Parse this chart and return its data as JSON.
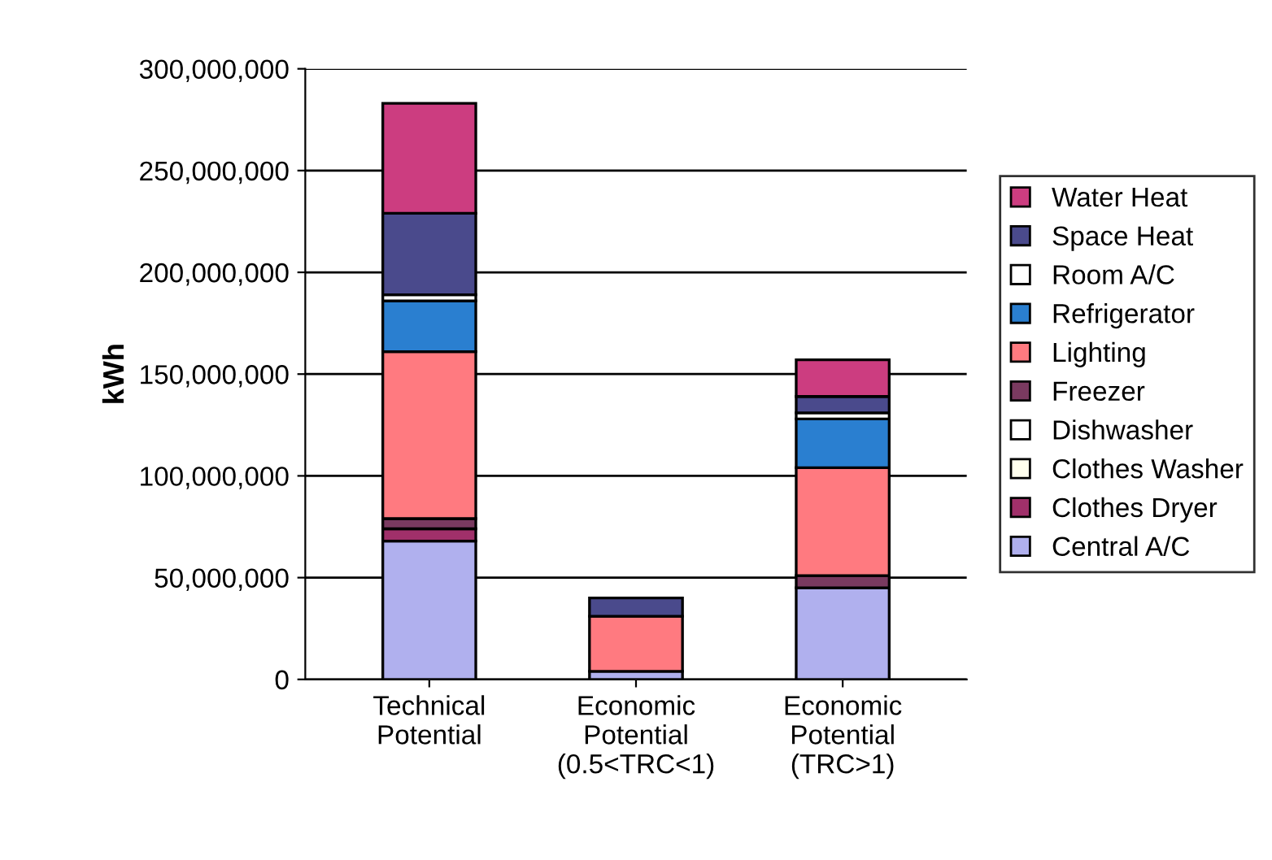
{
  "chart_data": {
    "type": "bar",
    "stacked": true,
    "ylabel": "kWh",
    "categories": [
      "Technical\nPotential",
      "Economic\nPotential\n(0.5<TRC<1)",
      "Economic\nPotential\n(TRC>1)"
    ],
    "series": [
      {
        "name": "Central A/C",
        "color": "#b0b0ee",
        "values": [
          68000000,
          4000000,
          45000000
        ]
      },
      {
        "name": "Clothes Dryer",
        "color": "#a0306a",
        "values": [
          6000000,
          0,
          0
        ]
      },
      {
        "name": "Clothes Washer",
        "color": "#ffffee",
        "values": [
          null,
          0,
          0
        ]
      },
      {
        "name": "Dishwasher",
        "color": "#ffffff",
        "values": [
          null,
          0,
          null
        ]
      },
      {
        "name": "Freezer",
        "color": "#7a3a60",
        "values": [
          5000000,
          null,
          6000000
        ]
      },
      {
        "name": "Lighting",
        "color": "#ff7a80",
        "values": [
          82000000,
          27000000,
          53000000
        ]
      },
      {
        "name": "Refrigerator",
        "color": "#2a7fd0",
        "values": [
          25000000,
          0,
          24000000
        ]
      },
      {
        "name": "Room A/C",
        "color": "#ffffff",
        "values": [
          3000000,
          0,
          3000000
        ]
      },
      {
        "name": "Space Heat",
        "color": "#4a4a8c",
        "values": [
          40000000,
          9000000,
          8000000
        ]
      },
      {
        "name": "Water Heat",
        "color": "#cc3d80",
        "values": [
          54000000,
          0,
          18000000
        ]
      }
    ],
    "ylim": [
      0,
      300000000
    ],
    "yticks": [
      {
        "value": 0,
        "label": "0"
      },
      {
        "value": 50000000,
        "label": "50,000,000"
      },
      {
        "value": 100000000,
        "label": "100,000,000"
      },
      {
        "value": 150000000,
        "label": "150,000,000"
      },
      {
        "value": 200000000,
        "label": "200,000,000"
      },
      {
        "value": 250000000,
        "label": "250,000,000"
      },
      {
        "value": 300000000,
        "label": "300,000,000"
      }
    ],
    "grid": "y",
    "legend": "right"
  }
}
